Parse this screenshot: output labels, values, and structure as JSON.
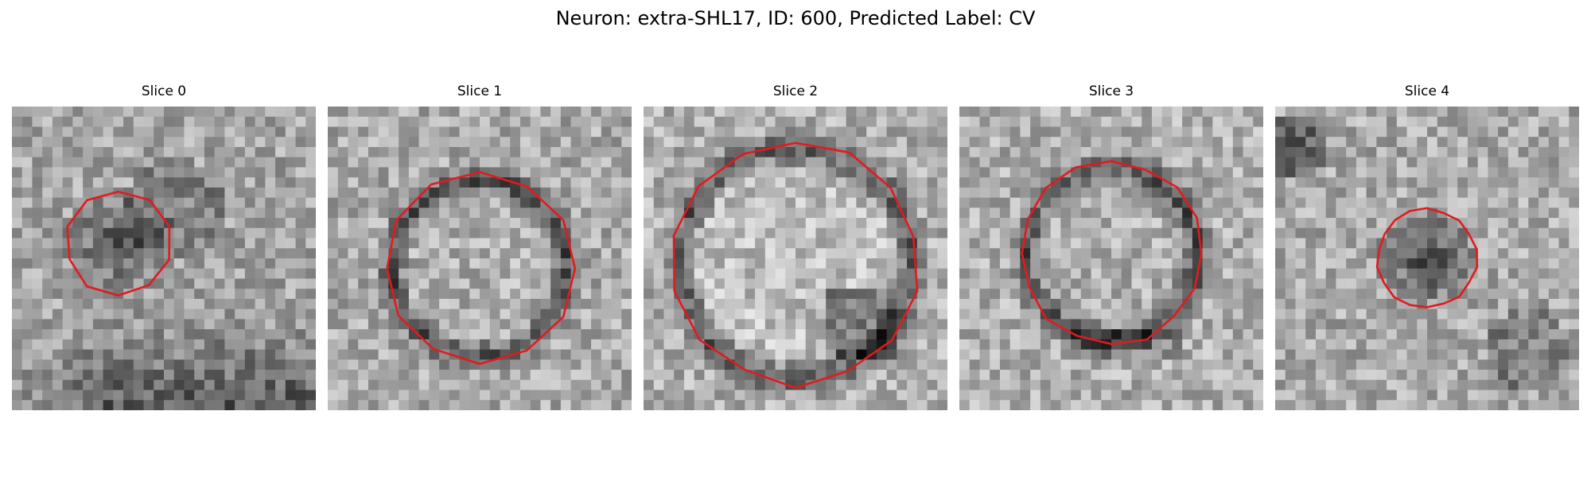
{
  "figure": {
    "title": "Neuron: extra-SHL17, ID: 600, Predicted Label: CV"
  },
  "panels": [
    {
      "title": "Slice 0"
    },
    {
      "title": "Slice 1"
    },
    {
      "title": "Slice 2"
    },
    {
      "title": "Slice 3"
    },
    {
      "title": "Slice 4"
    }
  ],
  "colors": {
    "contour": "#e31a1c",
    "colormap": "grayscale"
  }
}
